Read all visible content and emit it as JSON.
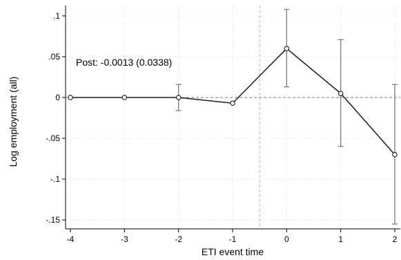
{
  "chart_data": {
    "type": "line",
    "title": "",
    "xlabel": "ETI event time",
    "ylabel": "Log employment (all)",
    "x_ticks": [
      -4,
      -3,
      -2,
      -1,
      0,
      1,
      2
    ],
    "x_tick_labels": [
      "-4",
      "-3",
      "-2",
      "-1",
      "0",
      "1",
      "2"
    ],
    "y_ticks": [
      0.1,
      0.05,
      0,
      -0.05,
      -0.1,
      -0.15
    ],
    "y_tick_labels": [
      ".1",
      ".05",
      "0",
      "-.05",
      "-.1",
      "-.15"
    ],
    "xlim": [
      -4,
      2
    ],
    "ylim": [
      -0.155,
      0.11
    ],
    "grid": true,
    "event_line_x": -0.5,
    "reference_line_y": 0,
    "annotation": "Post: -0.0013 (0.0338)",
    "series": [
      {
        "x": [
          -4,
          -3,
          -2,
          -1,
          0,
          1,
          2
        ],
        "y": [
          0,
          0,
          0,
          -0.007,
          0.06,
          0.005,
          -0.07
        ],
        "ci_low": [
          null,
          null,
          -0.016,
          null,
          0.013,
          -0.06,
          -0.155
        ],
        "ci_high": [
          null,
          null,
          0.016,
          null,
          0.108,
          0.071,
          0.016
        ]
      }
    ],
    "colors": {
      "line": "#1a1a1a",
      "ci": "#7a7a7a",
      "grid": "#dedede",
      "zero_line": "#7a7a7a",
      "event_line": "#d9a0a8",
      "axis": "#000000"
    }
  }
}
